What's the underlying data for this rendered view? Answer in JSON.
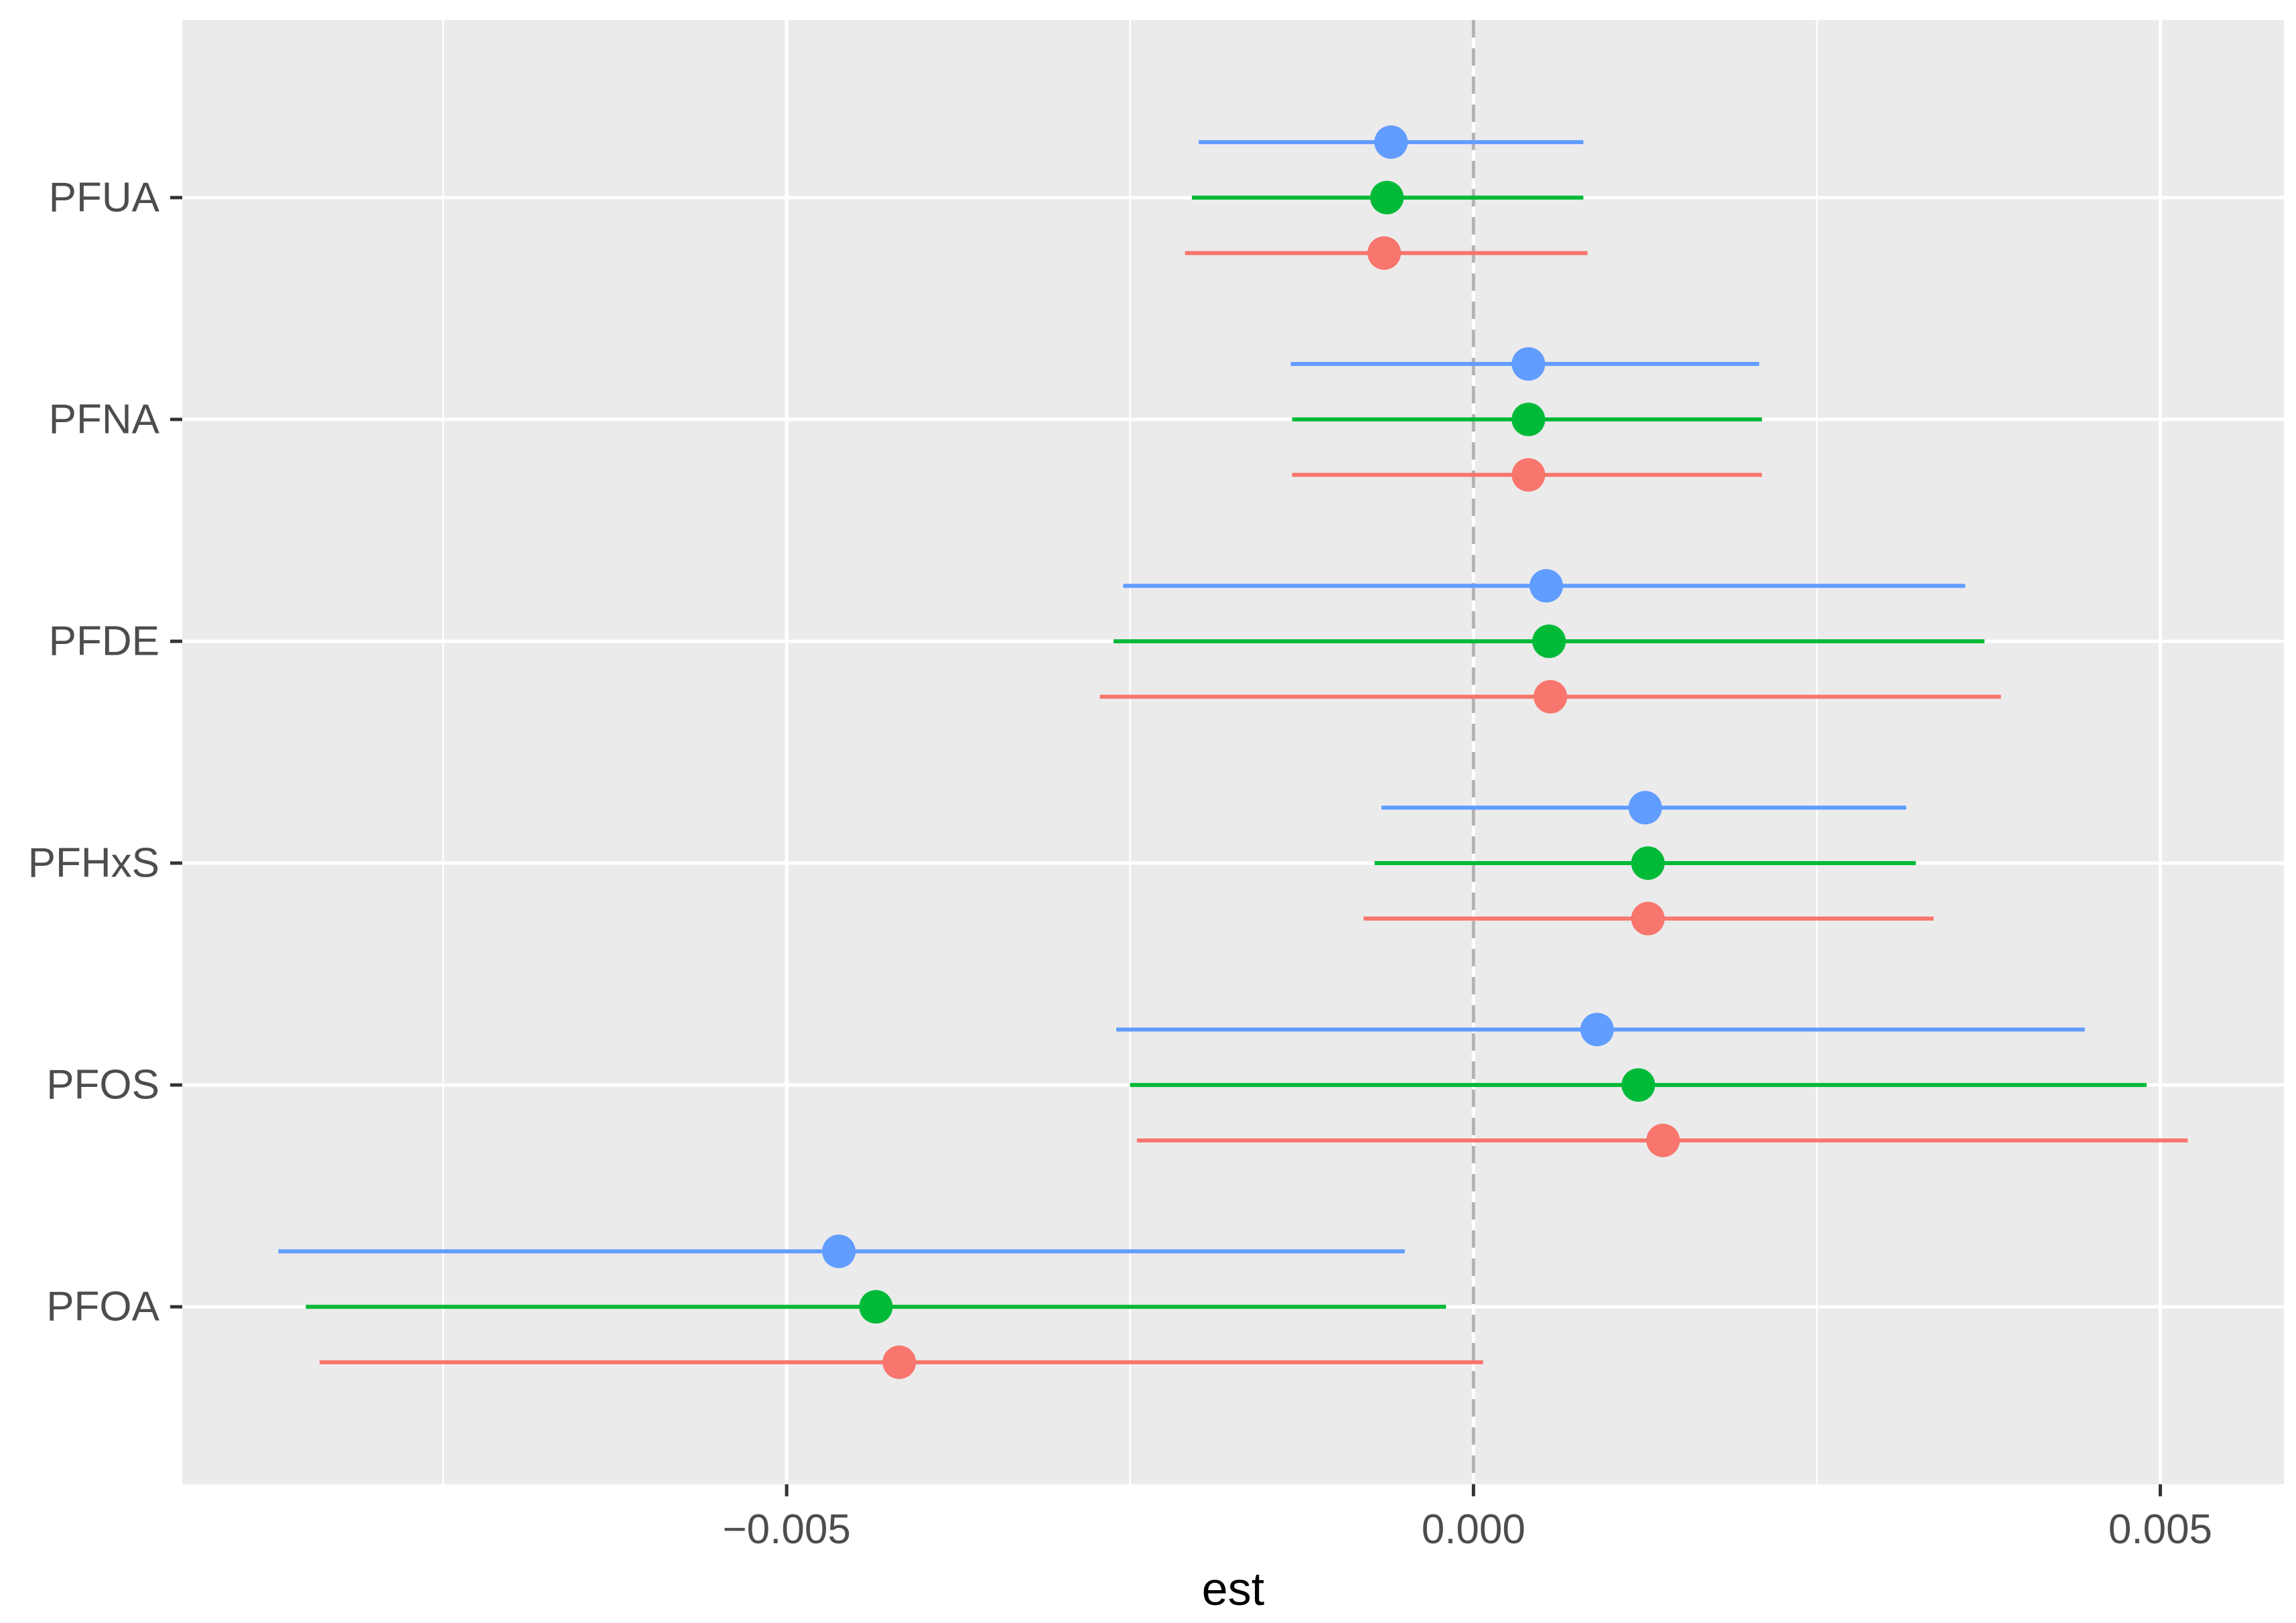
{
  "chart_data": {
    "type": "scatter",
    "subtype": "forest-plot",
    "title": "",
    "xlabel": "est",
    "ylabel": "",
    "xlim": [
      -0.0094,
      0.0059
    ],
    "x_ticks": [
      -0.005,
      0.0,
      0.005
    ],
    "x_tick_labels": [
      "−0.005",
      "0.000",
      "0.005"
    ],
    "reference_line": 0.0,
    "grid": true,
    "legend": "none",
    "categories": [
      "PFUA",
      "PFNA",
      "PFDE",
      "PFHxS",
      "PFOS",
      "PFOA"
    ],
    "series": [
      {
        "color": "#619CFF",
        "offset": "top",
        "est": [
          -0.0006,
          0.0004,
          0.00053,
          0.00125,
          0.0009,
          -0.00462
        ],
        "lower": [
          -0.002,
          -0.00133,
          -0.00255,
          -0.00067,
          -0.0026,
          -0.0087
        ],
        "upper": [
          0.0008,
          0.00208,
          0.00358,
          0.00315,
          0.00445,
          -0.0005
        ]
      },
      {
        "color": "#00BA38",
        "offset": "middle",
        "est": [
          -0.00063,
          0.0004,
          0.00055,
          0.00127,
          0.0012,
          -0.00435
        ],
        "lower": [
          -0.00205,
          -0.00132,
          -0.00262,
          -0.00072,
          -0.0025,
          -0.0085
        ],
        "upper": [
          0.0008,
          0.0021,
          0.00372,
          0.00322,
          0.0049,
          -0.0002
        ]
      },
      {
        "color": "#F8766D",
        "offset": "bottom",
        "est": [
          -0.00065,
          0.0004,
          0.00056,
          0.00127,
          0.00138,
          -0.00418
        ],
        "lower": [
          -0.0021,
          -0.00132,
          -0.00272,
          -0.0008,
          -0.00245,
          -0.0084
        ],
        "upper": [
          0.00083,
          0.0021,
          0.00384,
          0.00335,
          0.0052,
          7e-05
        ]
      }
    ]
  }
}
